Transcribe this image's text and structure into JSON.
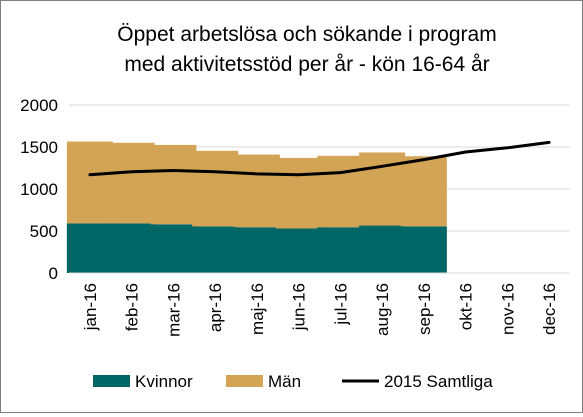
{
  "chart_data": {
    "type": "bar",
    "stacked": true,
    "title_lines": [
      "Öppet arbetslösa och sökande i program",
      "med aktivitetsstöd per år - kön 16-64 år"
    ],
    "categories": [
      "jan-16",
      "feb-16",
      "mar-16",
      "apr-16",
      "maj-16",
      "jun-16",
      "jul-16",
      "aug-16",
      "sep-16",
      "okt-16",
      "nov-16",
      "dec-16"
    ],
    "y_ticks": [
      "0",
      "500",
      "1000",
      "1500",
      "2000"
    ],
    "ylim": [
      0,
      2000
    ],
    "grid": true,
    "legend_position": "bottom",
    "series": [
      {
        "name": "Kvinnor",
        "kind": "bar",
        "color": "#006666",
        "values": [
          590,
          590,
          580,
          555,
          545,
          530,
          545,
          565,
          555,
          null,
          null,
          null
        ]
      },
      {
        "name": "Män",
        "kind": "bar",
        "color": "#D4A456",
        "values": [
          975,
          960,
          945,
          900,
          865,
          840,
          850,
          870,
          835,
          null,
          null,
          null
        ]
      },
      {
        "name": "2015 Samtliga",
        "kind": "line",
        "color": "#000000",
        "values": [
          1170,
          1205,
          1220,
          1205,
          1180,
          1170,
          1195,
          1270,
          1350,
          1440,
          1490,
          1555
        ]
      }
    ]
  }
}
